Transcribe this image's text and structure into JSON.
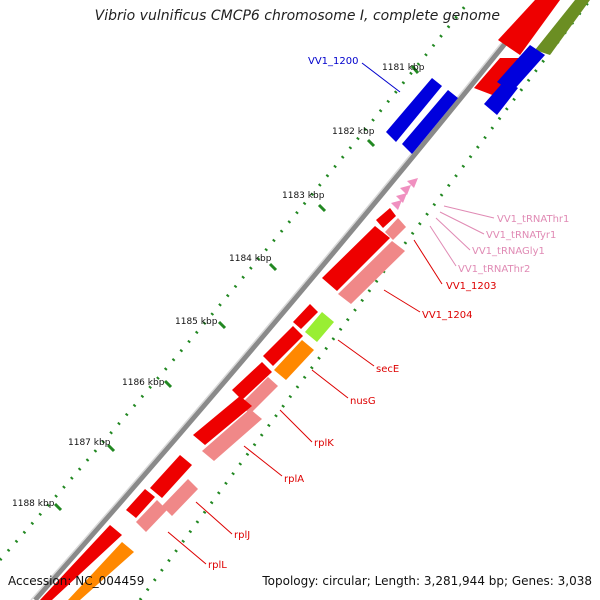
{
  "title": "Vibrio vulnificus CMCP6 chromosome I, complete genome",
  "accession": "Accession: NC_004459",
  "summary": "Topology: circular; Length: 3,281,944 bp; Genes: 3,038",
  "ticks": [
    "1181 kbp",
    "1182 kbp",
    "1183 kbp",
    "1184 kbp",
    "1185 kbp",
    "1186 kbp",
    "1187 kbp",
    "1188 kbp"
  ],
  "gene_labels": [
    {
      "text": "VV1_1200",
      "color": "#0000cc"
    },
    {
      "text": "VV1_tRNAThr1",
      "color": "#e08ab4"
    },
    {
      "text": "VV1_tRNATyr1",
      "color": "#e08ab4"
    },
    {
      "text": "VV1_tRNAGly1",
      "color": "#e08ab4"
    },
    {
      "text": "VV1_tRNAThr2",
      "color": "#e08ab4"
    },
    {
      "text": "VV1_1203",
      "color": "#dd0000"
    },
    {
      "text": "VV1_1204",
      "color": "#dd0000"
    },
    {
      "text": "secE",
      "color": "#dd0000"
    },
    {
      "text": "nusG",
      "color": "#dd0000"
    },
    {
      "text": "rplK",
      "color": "#dd0000"
    },
    {
      "text": "rplA",
      "color": "#dd0000"
    },
    {
      "text": "rplJ",
      "color": "#dd0000"
    },
    {
      "text": "rplL",
      "color": "#dd0000"
    }
  ],
  "colors": {
    "cds_red": "#ee0000",
    "cds_pink": "#f08888",
    "blue": "#0000dd",
    "olive": "#6b8e23",
    "green": "#99ee33",
    "orange": "#ff8800",
    "trna": "#f090c0",
    "backbone": "#888888",
    "gc_tick": "#228822"
  }
}
